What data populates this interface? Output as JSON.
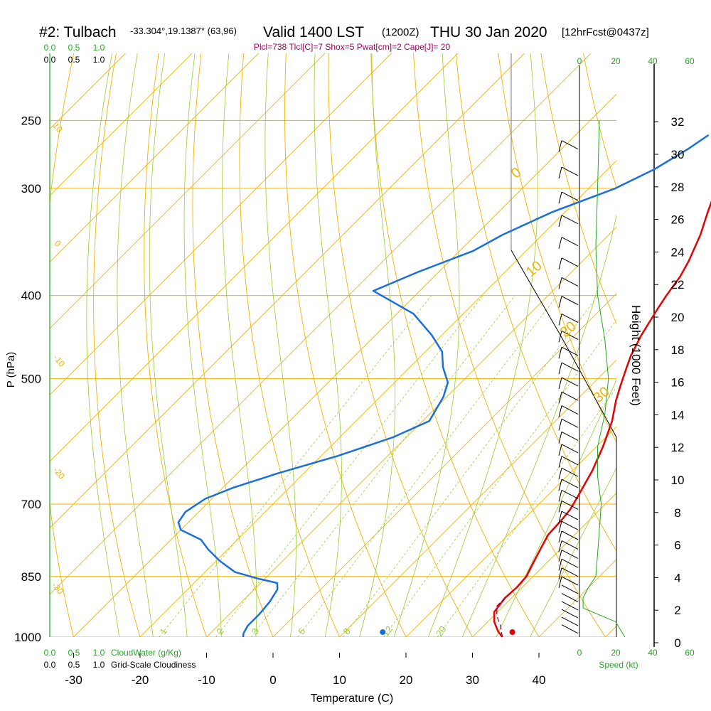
{
  "header": {
    "station": "#2: Tulbach",
    "coords": "-33.304°,19.1387° (63,96)",
    "valid": "Valid 1400 LST",
    "zulu": "(1200Z)",
    "date": "THU 30 Jan 2020",
    "forecast": "[12hrFcst@0437z]"
  },
  "indices": "Plcl=738 Tlcl[C]=7 Shox=5 Pwat[cm]=2 Cape[J]= 20",
  "colors": {
    "temperature": "#e60000",
    "dewpoint": "#1a6fdf",
    "isotherm": "#f0b400",
    "dry_adiabat": "#f0b400",
    "moist_adiabat": "#99cc33",
    "mixing_ratio": "#99cc33",
    "cloudwater": "#22aa22",
    "parcel": "#880044"
  },
  "chart_data": {
    "type": "line",
    "title": "",
    "xlabel": "Temperature (C)",
    "ylabel": "P (hPa)",
    "right_ylabel": "Height (1000 Feet)",
    "xlim": [
      -35,
      45
    ],
    "pressure_range": [
      1000,
      250
    ],
    "x_ticks": [
      "-30",
      "-20",
      "-10",
      "0",
      "10",
      "20",
      "30",
      "40"
    ],
    "pressure_levels": [
      250,
      300,
      400,
      500,
      700,
      850,
      1000
    ],
    "height_ticks": [
      "0",
      "2",
      "4",
      "6",
      "8",
      "10",
      "12",
      "14",
      "16",
      "18",
      "20",
      "22",
      "24",
      "26",
      "28",
      "30",
      "32"
    ],
    "isotherm_labels": [
      "0",
      "10",
      "20",
      "30"
    ],
    "left_isotherm_labels": [
      "10",
      "0",
      "-10",
      "-20",
      "-30"
    ],
    "mixing_ratio_labels": [
      "1",
      "2",
      "3",
      "5",
      "8",
      "12",
      "20"
    ],
    "series": [
      {
        "name": "",
        "role": "temperature",
        "points": [
          [
            34.5,
            1000
          ],
          [
            33,
            985
          ],
          [
            31,
            960
          ],
          [
            29.5,
            935
          ],
          [
            29,
            900
          ],
          [
            29.2,
            875
          ],
          [
            29,
            850
          ],
          [
            28,
            820
          ],
          [
            27,
            790
          ],
          [
            26,
            760
          ],
          [
            25.8,
            730
          ],
          [
            25.5,
            710
          ],
          [
            24.5,
            680
          ],
          [
            23,
            640
          ],
          [
            21,
            600
          ],
          [
            18.5,
            560
          ],
          [
            16,
            530
          ],
          [
            14.5,
            510
          ],
          [
            13,
            490
          ],
          [
            11.5,
            470
          ],
          [
            10,
            445
          ],
          [
            8.5,
            415
          ],
          [
            7.8,
            400
          ],
          [
            7,
            380
          ],
          [
            6,
            365
          ],
          [
            3.8,
            340
          ],
          [
            1.5,
            320
          ],
          [
            -0.8,
            300
          ],
          [
            -2.8,
            285
          ],
          [
            -5,
            270
          ],
          [
            -7,
            260
          ]
        ]
      },
      {
        "name": "",
        "role": "dewpoint",
        "points": [
          [
            -4.5,
            1000
          ],
          [
            -5,
            990
          ],
          [
            -5.5,
            970
          ],
          [
            -5.5,
            940
          ],
          [
            -5.8,
            910
          ],
          [
            -6.5,
            880
          ],
          [
            -7.5,
            865
          ],
          [
            -11,
            855
          ],
          [
            -15.5,
            840
          ],
          [
            -19.5,
            815
          ],
          [
            -23,
            790
          ],
          [
            -25.5,
            770
          ],
          [
            -30,
            750
          ],
          [
            -31.5,
            735
          ],
          [
            -32,
            715
          ],
          [
            -31,
            690
          ],
          [
            -28.5,
            670
          ],
          [
            -24,
            645
          ],
          [
            -17.5,
            615
          ],
          [
            -12,
            585
          ],
          [
            -9,
            560
          ],
          [
            -10.5,
            525
          ],
          [
            -12,
            505
          ],
          [
            -15,
            485
          ],
          [
            -17.5,
            465
          ],
          [
            -21.5,
            445
          ],
          [
            -27.5,
            420
          ],
          [
            -37,
            395
          ],
          [
            -33,
            375
          ],
          [
            -28,
            355
          ],
          [
            -26,
            340
          ],
          [
            -22,
            320
          ],
          [
            -16,
            300
          ],
          [
            -13,
            285
          ],
          [
            -11,
            270
          ],
          [
            -10,
            260
          ]
        ]
      },
      {
        "name": "",
        "role": "parcel",
        "points": [
          [
            34.5,
            1000
          ],
          [
            32.5,
            970
          ],
          [
            30.5,
            945
          ],
          [
            29,
            920
          ],
          [
            29,
            900
          ]
        ]
      }
    ],
    "surface_temperature": 36,
    "surface_dewpoint": 16.5,
    "cloud_scales": {
      "cloudwater_label": "CloudWater (g/Kg)",
      "cloudiness_label": "Grid-Scale Cloudiness",
      "cloudwater_ticks": [
        "0.0",
        "0.5",
        "1.0"
      ],
      "cloudiness_ticks": [
        "0.0",
        "0.5",
        "1.0"
      ]
    },
    "wind_panel": {
      "xlabel": "Speed (kt)",
      "ticks": [
        "0",
        "20",
        "40",
        "60"
      ],
      "speed_profile": [
        [
          25,
          1000
        ],
        [
          20,
          960
        ],
        [
          2,
          925
        ],
        [
          2,
          900
        ],
        [
          5,
          875
        ],
        [
          9,
          850
        ],
        [
          10,
          800
        ],
        [
          11,
          750
        ],
        [
          12,
          700
        ],
        [
          10,
          650
        ],
        [
          10,
          600
        ],
        [
          14,
          550
        ],
        [
          16,
          500
        ],
        [
          14,
          450
        ],
        [
          10,
          400
        ],
        [
          9,
          350
        ],
        [
          10,
          300
        ],
        [
          11,
          250
        ]
      ]
    }
  }
}
